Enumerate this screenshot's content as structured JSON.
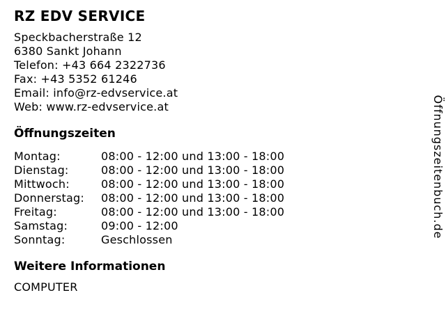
{
  "colors": {
    "text": "#000000",
    "background": "#ffffff"
  },
  "business": {
    "name": "RZ EDV SERVICE",
    "info_lines": [
      "Speckbacherstraße 12",
      "6380 Sankt Johann",
      "Telefon: +43 664 2322736",
      "Fax: +43 5352 61246",
      "Email: info@rz-edvservice.at",
      "Web: www.rz-edvservice.at"
    ]
  },
  "hours": {
    "heading": "Öffnungszeiten",
    "rows": [
      {
        "day": "Montag:",
        "time": "08:00 - 12:00 und 13:00 - 18:00"
      },
      {
        "day": "Dienstag:",
        "time": "08:00 - 12:00 und 13:00 - 18:00"
      },
      {
        "day": "Mittwoch:",
        "time": "08:00 - 12:00 und 13:00 - 18:00"
      },
      {
        "day": "Donnerstag:",
        "time": "08:00 - 12:00 und 13:00 - 18:00"
      },
      {
        "day": "Freitag:",
        "time": "08:00 - 12:00 und 13:00 - 18:00"
      },
      {
        "day": "Samstag:",
        "time": "09:00 - 12:00"
      },
      {
        "day": "Sonntag:",
        "time": "Geschlossen"
      }
    ]
  },
  "more_info": {
    "heading": "Weitere Informationen",
    "text": "COMPUTER"
  },
  "watermark": "Öffnungszeitenbuch.de"
}
